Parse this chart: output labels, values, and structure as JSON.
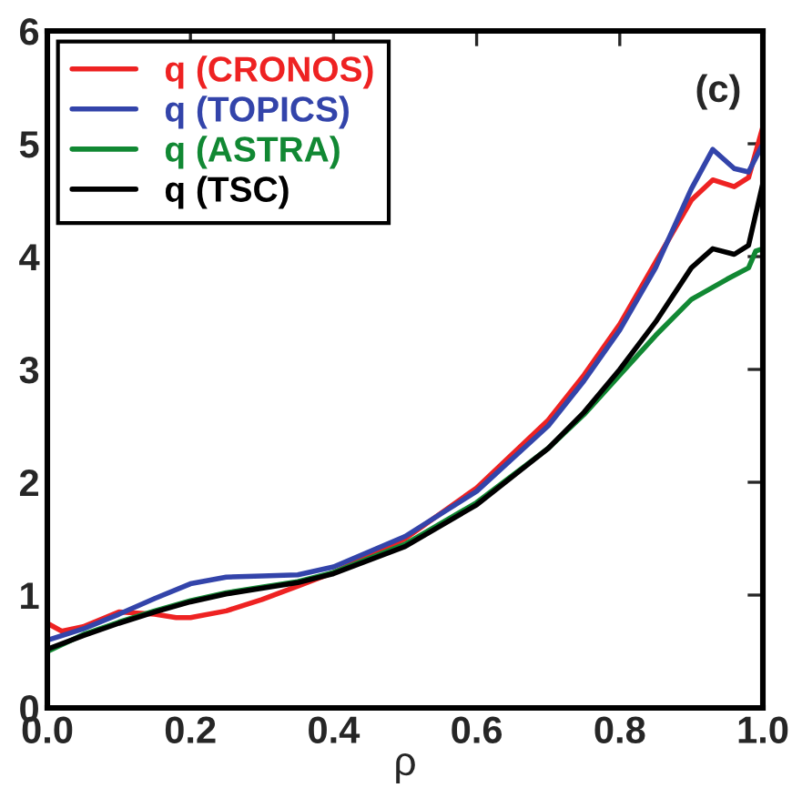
{
  "chart_data": {
    "type": "line",
    "xlabel": "ρ",
    "annotations": [
      "(c)"
    ],
    "xlim": [
      0.0,
      1.0
    ],
    "xticks": [
      {
        "value": 0,
        "label": "0.0"
      },
      0.2,
      0.4,
      0.6,
      0.8,
      {
        "value": 1,
        "label": "1.0"
      }
    ],
    "ylim": [
      0,
      6
    ],
    "yticks": [
      0,
      1,
      2,
      3,
      4,
      5,
      6
    ],
    "grid": false,
    "legend": "top left",
    "series": [
      {
        "name": "q (CRONOS)",
        "color": "#ee2222",
        "x": [
          0,
          0.02,
          0.05,
          0.1,
          0.15,
          0.18,
          0.2,
          0.25,
          0.3,
          0.35,
          0.4,
          0.5,
          0.6,
          0.7,
          0.75,
          0.8,
          0.85,
          0.9,
          0.93,
          0.96,
          0.98,
          1.0
        ],
        "values": [
          0.75,
          0.68,
          0.72,
          0.85,
          0.83,
          0.8,
          0.8,
          0.86,
          0.96,
          1.08,
          1.2,
          1.5,
          1.95,
          2.55,
          2.95,
          3.4,
          3.95,
          4.5,
          4.68,
          4.62,
          4.7,
          5.15
        ]
      },
      {
        "name": "q (TOPICS)",
        "color": "#3344aa",
        "x": [
          0,
          0.05,
          0.1,
          0.15,
          0.2,
          0.25,
          0.3,
          0.35,
          0.4,
          0.5,
          0.6,
          0.7,
          0.75,
          0.8,
          0.85,
          0.9,
          0.93,
          0.96,
          0.98,
          1.0
        ],
        "values": [
          0.6,
          0.7,
          0.83,
          0.97,
          1.1,
          1.16,
          1.17,
          1.18,
          1.25,
          1.52,
          1.92,
          2.5,
          2.9,
          3.35,
          3.9,
          4.6,
          4.95,
          4.78,
          4.75,
          5.0
        ]
      },
      {
        "name": "q (ASTRA)",
        "color": "#118833",
        "x": [
          0,
          0.05,
          0.1,
          0.15,
          0.2,
          0.25,
          0.3,
          0.35,
          0.4,
          0.5,
          0.6,
          0.7,
          0.75,
          0.8,
          0.85,
          0.9,
          0.95,
          0.98,
          0.99,
          1.0
        ],
        "values": [
          0.5,
          0.65,
          0.76,
          0.86,
          0.95,
          1.02,
          1.07,
          1.12,
          1.2,
          1.45,
          1.82,
          2.3,
          2.6,
          2.95,
          3.3,
          3.62,
          3.8,
          3.9,
          4.05,
          4.07
        ]
      },
      {
        "name": "q (TSC)",
        "color": "#000000",
        "x": [
          0,
          0.05,
          0.1,
          0.15,
          0.2,
          0.25,
          0.3,
          0.35,
          0.4,
          0.5,
          0.6,
          0.7,
          0.75,
          0.8,
          0.85,
          0.9,
          0.93,
          0.96,
          0.98,
          1.0
        ],
        "values": [
          0.52,
          0.64,
          0.75,
          0.85,
          0.94,
          1.01,
          1.06,
          1.11,
          1.19,
          1.43,
          1.8,
          2.3,
          2.62,
          3.0,
          3.42,
          3.9,
          4.07,
          4.02,
          4.1,
          4.65
        ]
      }
    ]
  }
}
